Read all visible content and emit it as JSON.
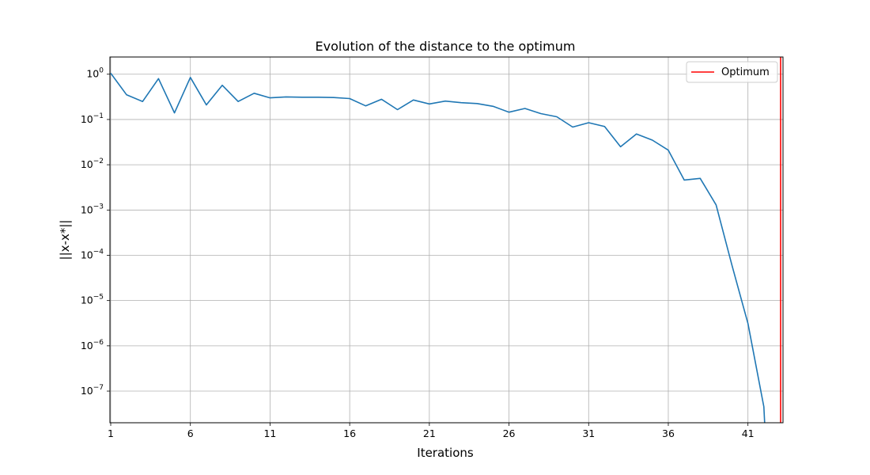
{
  "chart_data": {
    "type": "line",
    "title": "Evolution of the distance to the optimum",
    "xlabel": "Iterations",
    "ylabel": "||x-x*||",
    "yscale": "log",
    "xlim": [
      0.95,
      43.2
    ],
    "ylim": [
      2e-08,
      2.4
    ],
    "x_ticks": [
      1,
      6,
      11,
      16,
      21,
      26,
      31,
      36,
      41
    ],
    "y_ticks": [
      {
        "value": 1e-07,
        "base": "10",
        "exp": "−7"
      },
      {
        "value": 1e-06,
        "base": "10",
        "exp": "−6"
      },
      {
        "value": 1e-05,
        "base": "10",
        "exp": "−5"
      },
      {
        "value": 0.0001,
        "base": "10",
        "exp": "−4"
      },
      {
        "value": 0.001,
        "base": "10",
        "exp": "−3"
      },
      {
        "value": 0.01,
        "base": "10",
        "exp": "−2"
      },
      {
        "value": 0.1,
        "base": "10",
        "exp": "−1"
      },
      {
        "value": 1,
        "base": "10",
        "exp": "0"
      }
    ],
    "grid": true,
    "legend_position": "top-right",
    "series": [
      {
        "name": "",
        "color": "#1f77b4",
        "x": [
          1,
          2,
          3,
          4,
          5,
          6,
          7,
          8,
          9,
          10,
          11,
          12,
          13,
          14,
          15,
          16,
          17,
          18,
          19,
          20,
          21,
          22,
          23,
          24,
          25,
          26,
          27,
          28,
          29,
          30,
          31,
          32,
          33,
          34,
          35,
          36,
          37,
          38,
          39,
          40,
          41,
          42,
          42.05
        ],
        "y": [
          1.05,
          0.35,
          0.25,
          0.8,
          0.14,
          0.85,
          0.21,
          0.57,
          0.25,
          0.38,
          0.3,
          0.315,
          0.31,
          0.31,
          0.305,
          0.29,
          0.2,
          0.28,
          0.165,
          0.27,
          0.22,
          0.255,
          0.235,
          0.225,
          0.195,
          0.145,
          0.175,
          0.135,
          0.115,
          0.068,
          0.085,
          0.07,
          0.025,
          0.048,
          0.035,
          0.021,
          0.0046,
          0.005,
          0.0013,
          6e-05,
          3.1e-06,
          4.5e-08,
          2e-08
        ]
      }
    ],
    "vline": {
      "name": "Optimum",
      "x": 43.05,
      "color": "#ff0000"
    }
  }
}
